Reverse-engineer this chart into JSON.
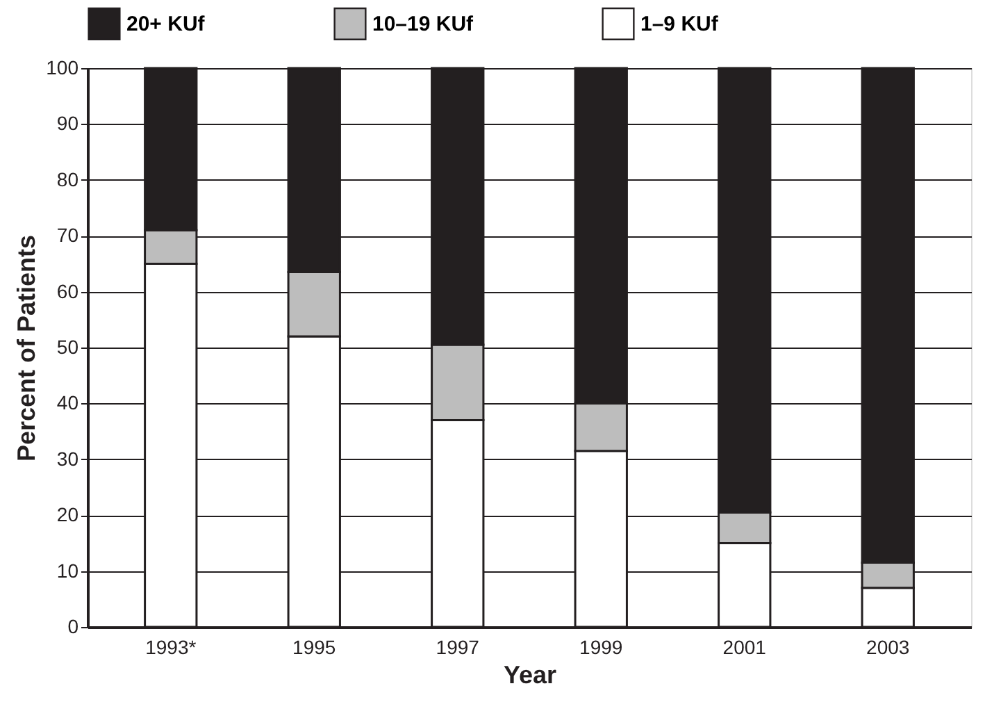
{
  "chart_data": {
    "type": "bar",
    "stacked": true,
    "xlabel": "Year",
    "ylabel": "Percent of Patients",
    "categories": [
      "1993*",
      "1995",
      "1997",
      "1999",
      "2001",
      "2003"
    ],
    "series": [
      {
        "name": "1–9 KUf",
        "color": "#ffffff",
        "values": [
          65,
          52,
          37,
          31.5,
          15,
          7
        ]
      },
      {
        "name": "10–19 KUf",
        "color": "#bdbdbd",
        "values": [
          6,
          11.5,
          13.5,
          8.5,
          5.5,
          4.5
        ]
      },
      {
        "name": "20+ KUf",
        "color": "#231f20",
        "values": [
          29,
          36.5,
          49.5,
          60,
          79.5,
          88.5
        ]
      }
    ],
    "ylim": [
      0,
      100
    ],
    "yticks": [
      0,
      10,
      20,
      30,
      40,
      50,
      60,
      70,
      80,
      90,
      100
    ],
    "grid": "y",
    "legend": "top"
  }
}
